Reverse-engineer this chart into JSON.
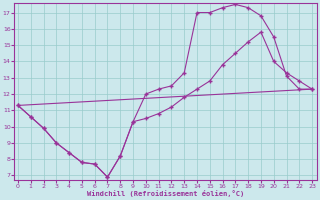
{
  "bg_color": "#cce8ec",
  "line_color": "#993399",
  "grid_color": "#99cccc",
  "xlim_min": -0.3,
  "xlim_max": 23.4,
  "ylim_min": 6.7,
  "ylim_max": 17.6,
  "xticks": [
    0,
    1,
    2,
    3,
    4,
    5,
    6,
    7,
    8,
    9,
    10,
    11,
    12,
    13,
    14,
    15,
    16,
    17,
    18,
    19,
    20,
    21,
    22,
    23
  ],
  "yticks": [
    7,
    8,
    9,
    10,
    11,
    12,
    13,
    14,
    15,
    16,
    17
  ],
  "xlabel": "Windchill (Refroidissement éolien,°C)",
  "curve1_x": [
    0,
    1,
    2,
    3,
    4,
    5,
    6,
    7,
    8,
    9,
    10,
    11,
    12,
    13,
    14,
    15,
    16,
    17,
    18,
    19,
    20,
    21,
    22,
    23
  ],
  "curve1_y": [
    11.3,
    10.6,
    9.9,
    9.0,
    8.4,
    7.8,
    7.7,
    6.9,
    8.2,
    10.3,
    12.0,
    12.3,
    12.5,
    13.3,
    17.0,
    17.0,
    17.3,
    17.5,
    17.3,
    16.8,
    15.5,
    13.1,
    12.3,
    12.3
  ],
  "curve2_x": [
    0,
    1,
    2,
    3,
    4,
    5,
    6,
    7,
    8,
    9,
    10,
    11,
    12,
    13,
    14,
    15,
    16,
    17,
    18,
    19,
    20,
    21,
    22,
    23
  ],
  "curve2_y": [
    11.3,
    10.6,
    9.9,
    9.0,
    8.4,
    7.8,
    7.7,
    6.9,
    8.2,
    10.3,
    10.5,
    10.8,
    11.2,
    11.8,
    12.3,
    12.8,
    13.8,
    14.5,
    15.2,
    15.8,
    14.0,
    13.3,
    12.8,
    12.3
  ],
  "line3_x": [
    0,
    23
  ],
  "line3_y": [
    11.3,
    12.3
  ]
}
